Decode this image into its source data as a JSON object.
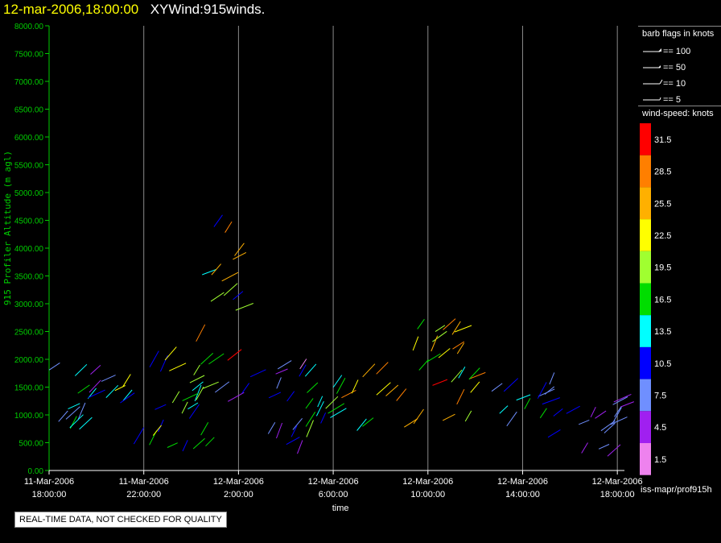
{
  "header": {
    "datetime": "12-mar-2006,18:00:00",
    "name": "XYWind:915winds."
  },
  "chart_data": {
    "type": "scatter",
    "subtype": "wind-barb profiler time-height plot",
    "ylabel": "915 Profiler Altitude (m agl)",
    "xlabel": "time",
    "ylim": [
      0,
      8000
    ],
    "yticks": [
      "0.00",
      "500.00",
      "1000.00",
      "1500.00",
      "2000.00",
      "2500.00",
      "3000.00",
      "3500.00",
      "4000.00",
      "4500.00",
      "5000.00",
      "5500.00",
      "6000.00",
      "6500.00",
      "7000.00",
      "7500.00",
      "8000.00"
    ],
    "xlim_hours_from_start": [
      0,
      24.3
    ],
    "xticks": [
      {
        "h": 0,
        "date": "11-Mar-2006",
        "time": "18:00:00"
      },
      {
        "h": 4,
        "date": "11-Mar-2006",
        "time": "22:00:00"
      },
      {
        "h": 8,
        "date": "12-Mar-2006",
        "time": "2:00:00"
      },
      {
        "h": 12,
        "date": "12-Mar-2006",
        "time": "6:00:00"
      },
      {
        "h": 16,
        "date": "12-Mar-2006",
        "time": "10:00:00"
      },
      {
        "h": 20,
        "date": "12-Mar-2006",
        "time": "14:00:00"
      },
      {
        "h": 24,
        "date": "12-Mar-2006",
        "time": "18:00:00"
      }
    ],
    "grid": "vertical",
    "colorscale_title": "wind-speed: knots",
    "colorscale": [
      {
        "label": "31.5",
        "color": "#ff0000"
      },
      {
        "label": "28.5",
        "color": "#ff7f00"
      },
      {
        "label": "25.5",
        "color": "#ffb000"
      },
      {
        "label": "22.5",
        "color": "#ffff00"
      },
      {
        "label": "19.5",
        "color": "#a0ff30"
      },
      {
        "label": "16.5",
        "color": "#00dd00"
      },
      {
        "label": "13.5",
        "color": "#00ffff"
      },
      {
        "label": "10.5",
        "color": "#0000ff"
      },
      {
        "label": "7.5",
        "color": "#6f8fff"
      },
      {
        "label": "4.5",
        "color": "#a020f0"
      },
      {
        "label": "1.5",
        "color": "#ee82ee"
      }
    ],
    "barb_legend_title": "barb flags in knots",
    "barb_legend": [
      "== 100",
      "== 50",
      "== 10",
      "== 5"
    ],
    "clusters": [
      {
        "h0": 0.0,
        "h1": 2.4,
        "alt_lo": 150,
        "alt_hi": 1950,
        "spd_lo": 5,
        "spd_hi": 17
      },
      {
        "h0": 2.4,
        "h1": 5.3,
        "alt_lo": 200,
        "alt_hi": 2000,
        "spd_lo": 9,
        "spd_hi": 24
      },
      {
        "h0": 5.6,
        "h1": 6.7,
        "alt_lo": 150,
        "alt_hi": 1600,
        "spd_lo": 9,
        "spd_hi": 19
      },
      {
        "h0": 6.1,
        "h1": 7.9,
        "alt_lo": 1700,
        "alt_hi": 4400,
        "spd_lo": 9,
        "spd_hi": 32
      },
      {
        "h0": 6.8,
        "h1": 10.8,
        "alt_lo": 300,
        "alt_hi": 1900,
        "spd_lo": 2,
        "spd_hi": 12
      },
      {
        "h0": 10.8,
        "h1": 12.2,
        "alt_lo": 600,
        "alt_hi": 1700,
        "spd_lo": 11,
        "spd_hi": 20
      },
      {
        "h0": 12.2,
        "h1": 18.6,
        "alt_lo": 500,
        "alt_hi": 1900,
        "spd_lo": 14,
        "spd_hi": 32
      },
      {
        "h0": 14.8,
        "h1": 17.4,
        "alt_lo": 1500,
        "alt_hi": 2550,
        "spd_lo": 16,
        "spd_hi": 30
      },
      {
        "h0": 18.6,
        "h1": 21.9,
        "alt_lo": 500,
        "alt_hi": 1600,
        "spd_lo": 7,
        "spd_hi": 21
      },
      {
        "h0": 22.3,
        "h1": 24.4,
        "alt_lo": 250,
        "alt_hi": 1300,
        "spd_lo": 2,
        "spd_hi": 9
      }
    ]
  },
  "source_id": "iss-mapr/prof915h",
  "banner": "REAL-TIME DATA, NOT CHECKED FOR QUALITY"
}
